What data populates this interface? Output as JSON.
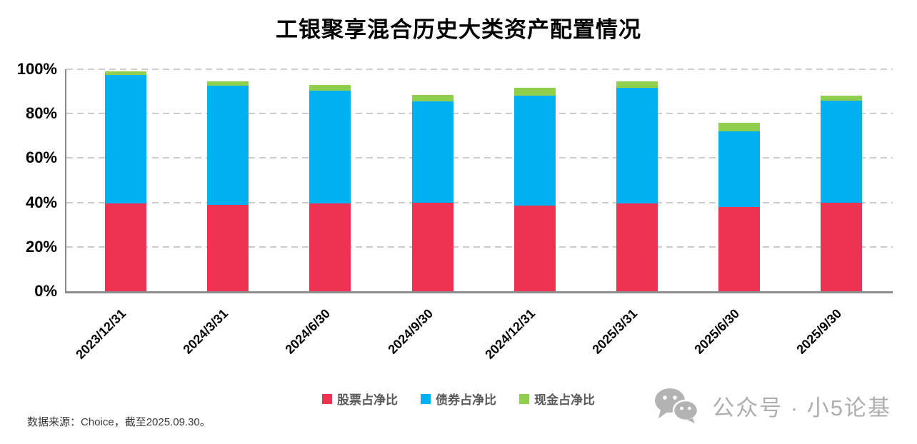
{
  "title": "工银聚享混合历史大类资产配置情况",
  "source_note": "数据来源：Choice，截至2025.09.30。",
  "watermark": {
    "icon": "wechat-icon",
    "text": "公众号 · 小5论基"
  },
  "colors": {
    "stock": "#ee3350",
    "bond": "#00b0f0",
    "cash": "#90ce4e",
    "gridline": "#cccccc",
    "axis": "#8c8c8c",
    "legend_text": "#595959",
    "watermark_gray": "#aeaeae"
  },
  "chart_data": {
    "type": "bar",
    "stacked": true,
    "title": "工银聚享混合历史大类资产配置情况",
    "categories": [
      "2023/12/31",
      "2024/3/31",
      "2024/6/30",
      "2024/9/30",
      "2024/12/31",
      "2025/3/31",
      "2025/6/30",
      "2025/9/30"
    ],
    "series": [
      {
        "name": "股票占净比",
        "color_key": "stock",
        "values": [
          39.5,
          39.0,
          39.5,
          40.0,
          38.5,
          39.5,
          38.0,
          40.0
        ]
      },
      {
        "name": "债券占净比",
        "color_key": "bond",
        "values": [
          58.0,
          53.5,
          51.0,
          45.5,
          49.5,
          52.0,
          34.0,
          46.0
        ]
      },
      {
        "name": "现金占净比",
        "color_key": "cash",
        "values": [
          1.5,
          2.0,
          2.5,
          3.0,
          3.5,
          3.0,
          4.0,
          2.0
        ]
      }
    ],
    "y_ticks": [
      {
        "value": 0,
        "label": "0%"
      },
      {
        "value": 20,
        "label": "20%"
      },
      {
        "value": 40,
        "label": "40%"
      },
      {
        "value": 60,
        "label": "60%"
      },
      {
        "value": 80,
        "label": "80%"
      },
      {
        "value": 100,
        "label": "100%"
      }
    ],
    "ylim": [
      0,
      100
    ],
    "grid": "dashed-horizontal",
    "legend_position": "bottom"
  }
}
